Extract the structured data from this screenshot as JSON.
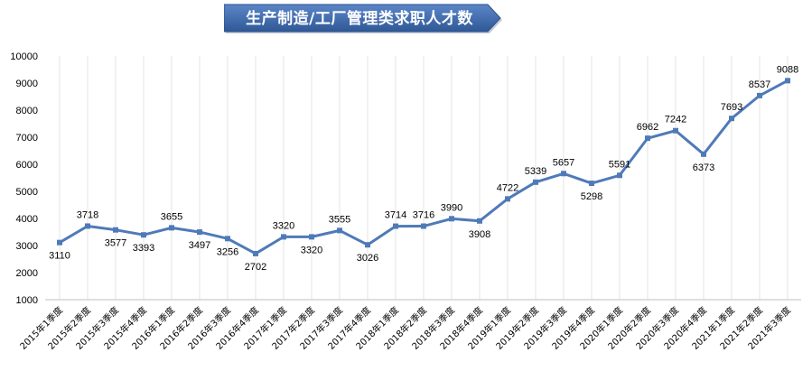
{
  "chart_data": {
    "type": "line",
    "title": "生产制造/工厂管理类求职人才数",
    "xlabel": "",
    "ylabel": "",
    "ylim": [
      1000,
      10000
    ],
    "yticks": [
      1000,
      2000,
      3000,
      4000,
      5000,
      6000,
      7000,
      8000,
      9000,
      10000
    ],
    "grid": "vertical",
    "legend": "none",
    "line_color": "#4f7ab8",
    "categories": [
      "2015年1季度",
      "2015年2季度",
      "2015年3季度",
      "2015年4季度",
      "2016年1季度",
      "2016年2季度",
      "2016年3季度",
      "2016年4季度",
      "2017年1季度",
      "2017年2季度",
      "2017年3季度",
      "2017年4季度",
      "2018年1季度",
      "2018年2季度",
      "2018年3季度",
      "2018年4季度",
      "2019年1季度",
      "2019年2季度",
      "2019年3季度",
      "2019年4季度",
      "2020年1季度",
      "2020年2季度",
      "2020年3季度",
      "2020年4季度",
      "2021年1季度",
      "2021年2季度",
      "2021年3季度"
    ],
    "values": [
      3110,
      3718,
      3577,
      3393,
      3655,
      3497,
      3256,
      2702,
      3320,
      3320,
      3555,
      3026,
      3714,
      3716,
      3990,
      3908,
      4722,
      5339,
      5657,
      5298,
      5591,
      6962,
      7242,
      6373,
      7693,
      8537,
      9088
    ]
  }
}
